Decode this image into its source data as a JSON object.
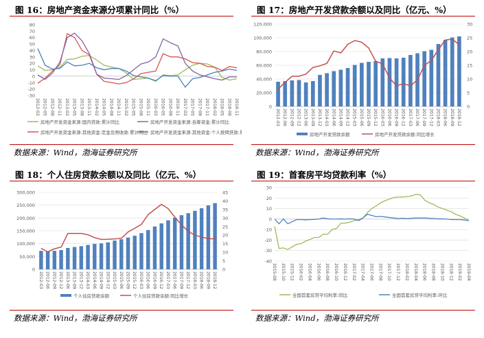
{
  "source_text": "数据来源：Wind，渤海证券研究所",
  "chart_data": [
    {
      "type": "line",
      "title": "图 16：房地产资金来源分项累计同比（%）",
      "ylim": [
        -30,
        80
      ],
      "yticks": [
        80,
        70,
        60,
        50,
        40,
        30,
        20,
        10,
        0,
        -10,
        -20,
        -30
      ],
      "x": [
        "2012-02",
        "2012-05",
        "2012-08",
        "2012-11",
        "2013-02",
        "2013-05",
        "2013-08",
        "2013-11",
        "2014-02",
        "2014-05",
        "2014-08",
        "2014-11",
        "2015-02",
        "2015-05",
        "2015-08",
        "2015-11",
        "2016-02",
        "2016-05",
        "2016-08",
        "2016-11",
        "2017-02",
        "2017-05",
        "2017-08",
        "2017-11",
        "2018-02",
        "2018-05",
        "2018-08",
        "2018-11"
      ],
      "series": [
        {
          "name": "房地产开发资金来源:国内贷款:累计同比",
          "color": "#9bbb59",
          "values": [
            16,
            9,
            10,
            14,
            26,
            27,
            31,
            32,
            25,
            17,
            14,
            12,
            5,
            -5,
            -4,
            -3,
            -8,
            2,
            1,
            2,
            10,
            17,
            20,
            19,
            14,
            -2,
            -6,
            -4
          ]
        },
        {
          "name": "房地产开发资金来源:自筹资金:累计同比",
          "color": "#4a7ebb",
          "values": [
            43,
            17,
            11,
            12,
            22,
            16,
            17,
            20,
            13,
            10,
            12,
            12,
            8,
            1,
            -1,
            -3,
            -7,
            1,
            0,
            0,
            -17,
            -4,
            -2,
            2,
            6,
            8,
            11,
            9
          ]
        },
        {
          "name": "房地产开发资金来源:其他资金:定金及预收款:累计同比",
          "color": "#d9534f",
          "values": [
            -11,
            -3,
            8,
            18,
            66,
            60,
            40,
            33,
            3,
            -8,
            -10,
            -12,
            -10,
            -4,
            4,
            6,
            8,
            35,
            30,
            30,
            27,
            21,
            20,
            15,
            14,
            9,
            15,
            13
          ]
        },
        {
          "name": "房地产开发资金来源:其他资金:个人按揭贷款:累计同比",
          "color": "#8064a2",
          "values": [
            2,
            -5,
            5,
            22,
            60,
            67,
            55,
            35,
            3,
            -3,
            -4,
            -5,
            1,
            10,
            19,
            22,
            30,
            58,
            52,
            47,
            20,
            8,
            2,
            -1,
            -4,
            -6,
            -1,
            -1
          ]
        }
      ]
    },
    {
      "type": "bar",
      "title": "图 17：房地产开发贷款余额以及同比（亿元、%）",
      "categories": [
        "2012-03",
        "2012-06",
        "2012-09",
        "2012-12",
        "2013-06",
        "2013-09",
        "2013-12",
        "2014-03",
        "2014-06",
        "2014-09",
        "2014-12",
        "2015-03",
        "2015-06",
        "2015-09",
        "2015-12",
        "2016-03",
        "2016-06",
        "2016-09",
        "2016-12",
        "2017-03",
        "2017-06",
        "2017-09",
        "2017-12",
        "2018-03",
        "2018-06",
        "2018-09",
        "2018-12"
      ],
      "ylim": [
        0,
        120000
      ],
      "yticks": [
        "120,000",
        "100,000",
        "80,000",
        "60,000",
        "40,000",
        "20,000",
        "0"
      ],
      "y2lim": [
        0,
        30
      ],
      "y2ticks": [
        "30",
        "25",
        "20",
        "15",
        "10",
        "5",
        "0"
      ],
      "series": [
        {
          "name": "房地产开发贷款余额",
          "color": "#4f81bd",
          "axis": "left",
          "kind": "bar",
          "values": [
            36000,
            37000,
            38000,
            38500,
            35000,
            37000,
            46000,
            48500,
            51500,
            53500,
            56000,
            60500,
            63500,
            65000,
            66000,
            70000,
            70500,
            70000,
            71000,
            75000,
            77500,
            80500,
            82500,
            91000,
            97000,
            100500,
            102000
          ]
        },
        {
          "name": "房地产开发贷款余额:同比增长",
          "color": "#c0504d",
          "axis": "right",
          "kind": "line",
          "values": [
            6.3,
            8.8,
            11,
            11,
            11.8,
            14.2,
            14.8,
            15.7,
            20.2,
            19.5,
            22.6,
            24,
            23.4,
            21.3,
            16.5,
            15.5,
            10.3,
            7.6,
            8.3,
            7.5,
            9.7,
            15,
            16.7,
            20.7,
            24.2,
            24.5,
            22.5
          ]
        }
      ]
    },
    {
      "type": "bar",
      "title": "图 18：个人住房贷款余额以及同比（亿元、%）",
      "categories": [
        "2012-03",
        "2012-06",
        "2012-09",
        "2012-12",
        "2013-06",
        "2013-09",
        "2013-12",
        "2014-03",
        "2014-06",
        "2014-09",
        "2014-12",
        "2015-03",
        "2015-06",
        "2015-09",
        "2015-12",
        "2016-03",
        "2016-06",
        "2016-09",
        "2016-12",
        "2017-03",
        "2017-06",
        "2017-09",
        "2017-12",
        "2018-03",
        "2018-06",
        "2018-09",
        "2018-12"
      ],
      "ylim": [
        0,
        300000
      ],
      "yticks": [
        "300,000",
        "250,000",
        "200,000",
        "150,000",
        "100,000",
        "50,000",
        "0"
      ],
      "y2lim": [
        0,
        45
      ],
      "y2ticks": [
        "45",
        "40",
        "35",
        "30",
        "25",
        "20",
        "15",
        "10",
        "5",
        "0"
      ],
      "series": [
        {
          "name": "个人住房贷款余额",
          "color": "#4f81bd",
          "axis": "left",
          "kind": "bar",
          "values": [
            72000,
            70000,
            72000,
            75000,
            83000,
            87000,
            90000,
            95000,
            99000,
            101000,
            105000,
            112000,
            117000,
            124000,
            131000,
            141000,
            153000,
            167000,
            179000,
            191000,
            201000,
            211000,
            219000,
            228000,
            238000,
            249000,
            258000
          ]
        },
        {
          "name": "个人住房贷款余额:同比增长",
          "color": "#c0504d",
          "axis": "right",
          "kind": "line",
          "values": [
            12.3,
            10.2,
            12,
            13,
            21,
            21,
            21,
            20.2,
            18.5,
            17.5,
            17.6,
            17.8,
            18.1,
            21.8,
            24,
            26.3,
            32,
            35,
            38,
            35.5,
            30.5,
            26,
            22.2,
            20,
            18.8,
            18,
            17.8
          ]
        }
      ]
    },
    {
      "type": "line",
      "title": "图 19：首套房平均贷款利率（%）",
      "ylim": [
        -40,
        30
      ],
      "yticks": [
        30,
        20,
        10,
        0,
        -10,
        -20,
        -30,
        -40
      ],
      "x_tick_labels": [
        "2015-08",
        "2015-10",
        "2015-12",
        "2016-02",
        "2016-04",
        "2016-06",
        "2016-08",
        "2016-10",
        "2016-12",
        "2017-02",
        "2017-04",
        "2017-06",
        "2017-08",
        "2017-10",
        "2017-12",
        "2018-02",
        "2018-04",
        "2018-06",
        "2018-08",
        "2018-10",
        "2018-12",
        "2019-02",
        "2019-04"
      ],
      "x_start": "2015-08",
      "x_end": "2019-04",
      "frequency": "monthly",
      "series": [
        {
          "name": "全国首套房贷平均利率:同比",
          "color": "#9bbb59",
          "values": [
            -7,
            -28,
            -27.5,
            -29,
            -26.5,
            -24,
            -23.5,
            -21,
            -19.5,
            -17.5,
            -17.5,
            -14.5,
            -14.5,
            -10,
            -9,
            -4,
            -3.8,
            -3,
            -1.5,
            -0.5,
            1,
            6,
            10,
            12.5,
            15.5,
            17.5,
            19,
            20.5,
            21,
            21,
            21.5,
            22,
            23.5,
            23,
            18,
            15.5,
            14,
            11.5,
            10,
            8.5,
            7,
            4.5,
            3,
            1,
            -1.5
          ]
        },
        {
          "name": "全国首套房贷平均利率:环比",
          "color": "#4f81bd",
          "values": [
            0,
            -4.5,
            0,
            -4.5,
            -2.5,
            -0.5,
            -0.5,
            -0.8,
            -0.5,
            -0.3,
            0,
            1,
            0.2,
            0,
            0,
            0.2,
            0,
            0.2,
            0,
            -1.5,
            1,
            4.5,
            3.5,
            2.2,
            2.5,
            2,
            1.5,
            1,
            0.5,
            0.8,
            0.5,
            0.8,
            1,
            1,
            1,
            0.8,
            0.5,
            0.2,
            0.2,
            0,
            -0.5,
            -0.5,
            -0.5,
            -1,
            -1.5
          ]
        }
      ]
    }
  ]
}
